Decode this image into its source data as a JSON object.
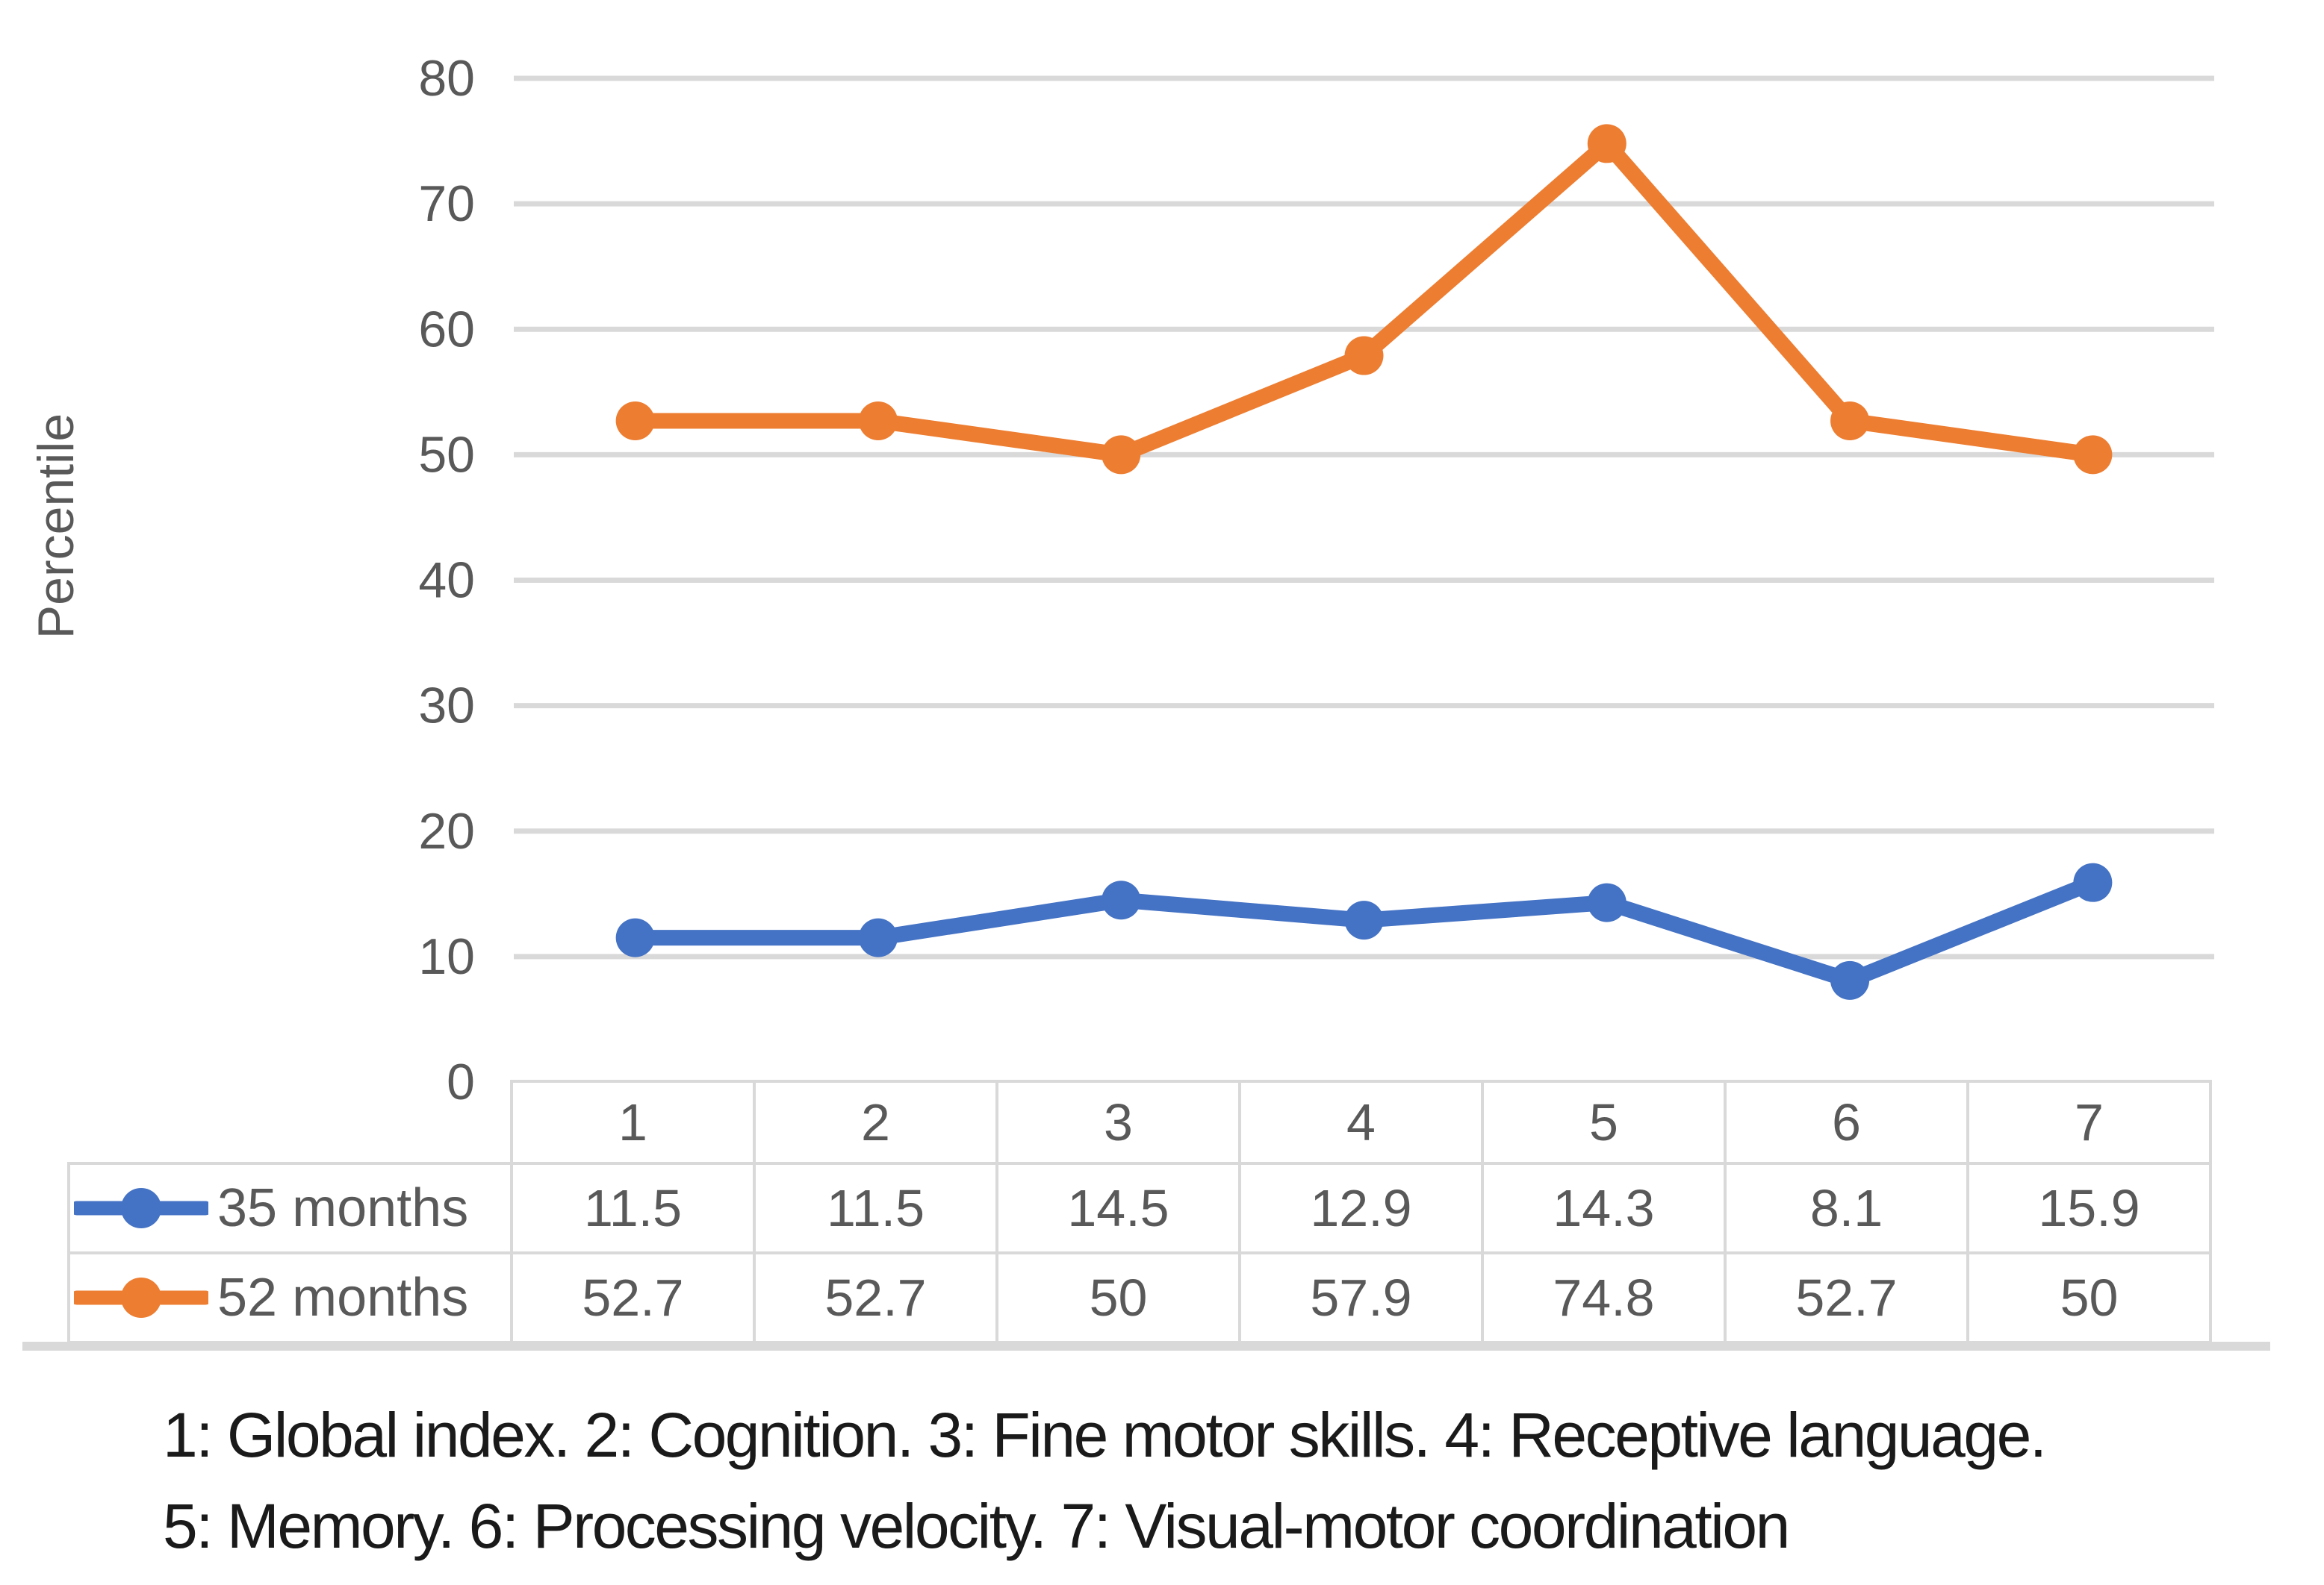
{
  "chart_data": {
    "type": "line",
    "title": "",
    "ylabel": "Percentile",
    "xlabel": "",
    "categories": [
      "1",
      "2",
      "3",
      "4",
      "5",
      "6",
      "7"
    ],
    "series": [
      {
        "name": "35 months",
        "color": "#4472C4",
        "values": [
          11.5,
          11.5,
          14.5,
          12.9,
          14.3,
          8.1,
          15.9
        ]
      },
      {
        "name": "52 months",
        "color": "#ED7D31",
        "values": [
          52.7,
          52.7,
          50,
          57.9,
          74.8,
          52.7,
          50
        ]
      }
    ],
    "y_axis": {
      "min": 0,
      "max": 80,
      "ticks": [
        0,
        10,
        20,
        30,
        40,
        50,
        60,
        70,
        80
      ]
    },
    "grid": true,
    "legend_position": "table-left",
    "marker": "circle"
  },
  "colors": {
    "grid": "#D9D9D9",
    "table_border": "#D9D9D9",
    "axis_text": "#595959",
    "baseline": "#D9D9D9",
    "caption_text": "#1A1A1A",
    "background": "#FFFFFF"
  },
  "caption": {
    "line1": "1: Global index. 2: Cognition. 3: Fine motor skills. 4: Receptive language.",
    "line2": "5: Memory. 6: Processing velocity. 7: Visual-motor coordination"
  }
}
